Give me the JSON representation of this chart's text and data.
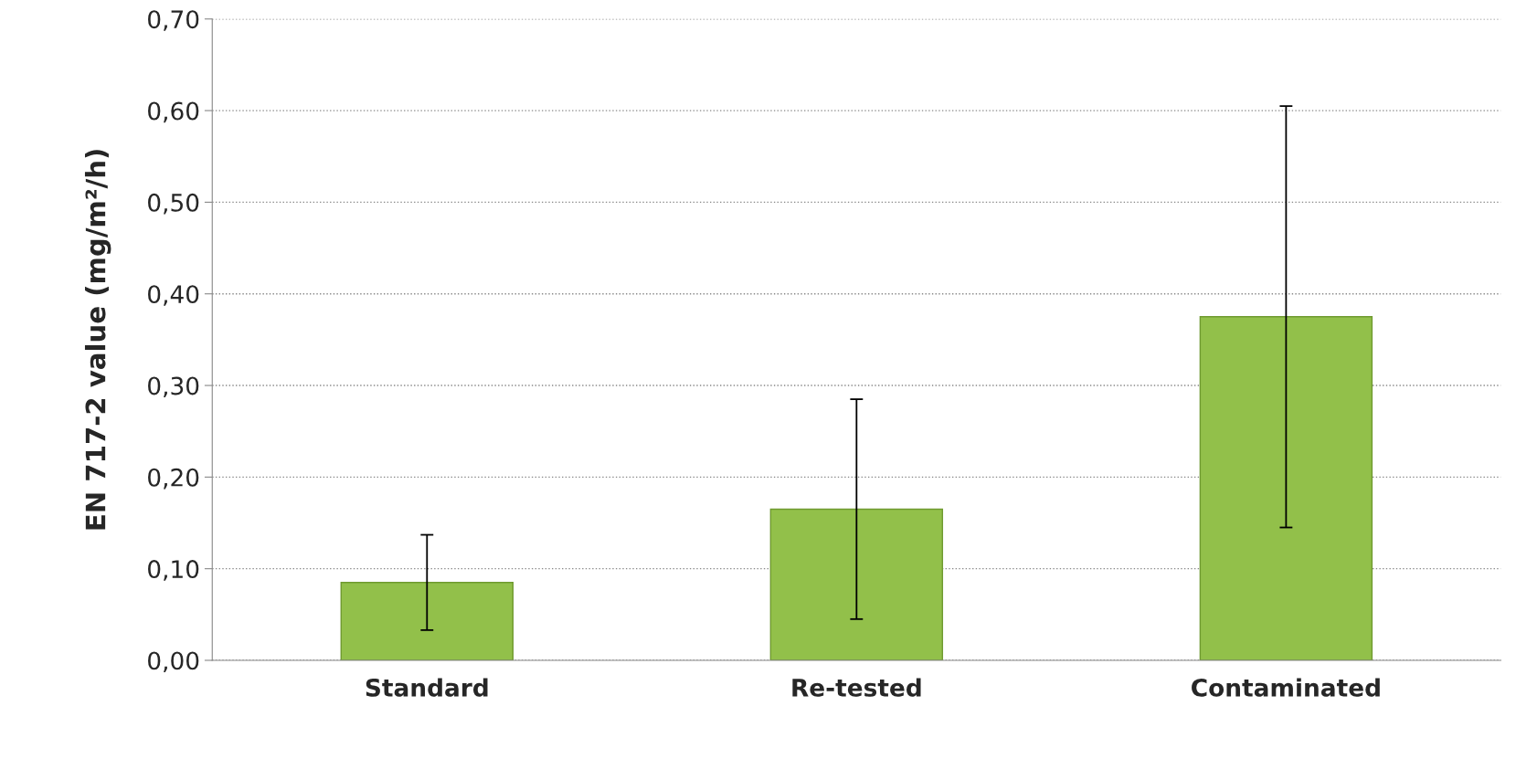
{
  "chart_data": {
    "type": "bar",
    "ylabel": "EN 717-2 value (mg/m²/h)",
    "categories": [
      "Standard",
      "Re-tested",
      "Contaminated"
    ],
    "values": [
      0.085,
      0.165,
      0.375
    ],
    "errors": [
      0.052,
      0.12,
      0.23
    ],
    "color": "#92c04a",
    "ylim": [
      0,
      0.7
    ],
    "yticks": [
      {
        "value": 0,
        "label": "0,00"
      },
      {
        "value": 0.1,
        "label": "0,10"
      },
      {
        "value": 0.2,
        "label": "0,20"
      },
      {
        "value": 0.3,
        "label": "0,30"
      },
      {
        "value": 0.4,
        "label": "0,40"
      },
      {
        "value": 0.5,
        "label": "0,50"
      },
      {
        "value": 0.6,
        "label": "0,60"
      },
      {
        "value": 0.7,
        "label": "0,70"
      }
    ],
    "grid": "y"
  }
}
